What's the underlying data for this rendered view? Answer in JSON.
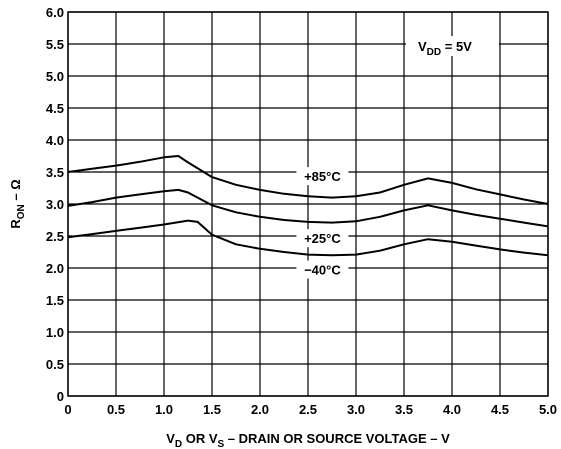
{
  "chart_data": {
    "type": "line",
    "title": "",
    "xlabel": {
      "parts": [
        {
          "t": "V"
        },
        {
          "t": "D",
          "sub": true
        },
        {
          "t": " OR V"
        },
        {
          "t": "S",
          "sub": true
        },
        {
          "t": " – DRAIN OR SOURCE VOLTAGE – V"
        }
      ]
    },
    "ylabel": {
      "parts": [
        {
          "t": "R"
        },
        {
          "t": "ON",
          "sub": true
        },
        {
          "t": " – Ω"
        }
      ]
    },
    "xlim": [
      0,
      5
    ],
    "ylim": [
      0,
      6
    ],
    "x_ticks": [
      "0",
      "0.5",
      "1.0",
      "1.5",
      "2.0",
      "2.5",
      "3.0",
      "3.5",
      "4.0",
      "4.5",
      "5.0"
    ],
    "y_ticks": [
      "0",
      "0.5",
      "1.0",
      "1.5",
      "2.0",
      "2.5",
      "3.0",
      "3.5",
      "4.0",
      "4.5",
      "5.0",
      "5.5",
      "6.0"
    ],
    "grid": true,
    "condition": {
      "parts": [
        {
          "t": "V"
        },
        {
          "t": "DD",
          "sub": true
        },
        {
          "t": " = 5V"
        }
      ]
    },
    "series": [
      {
        "name": "+85°C",
        "x": [
          0,
          0.25,
          0.5,
          0.75,
          1.0,
          1.15,
          1.25,
          1.5,
          1.75,
          2.0,
          2.25,
          2.5,
          2.75,
          3.0,
          3.25,
          3.5,
          3.75,
          4.0,
          4.25,
          4.5,
          4.75,
          5.0
        ],
        "y": [
          3.5,
          3.55,
          3.6,
          3.66,
          3.73,
          3.75,
          3.65,
          3.42,
          3.3,
          3.22,
          3.16,
          3.12,
          3.1,
          3.12,
          3.18,
          3.3,
          3.4,
          3.33,
          3.23,
          3.15,
          3.07,
          3.0
        ]
      },
      {
        "name": "+25°C",
        "x": [
          0,
          0.25,
          0.5,
          0.75,
          1.0,
          1.15,
          1.25,
          1.5,
          1.75,
          2.0,
          2.25,
          2.5,
          2.75,
          3.0,
          3.25,
          3.5,
          3.75,
          4.0,
          4.25,
          4.5,
          4.75,
          5.0
        ],
        "y": [
          2.97,
          3.03,
          3.1,
          3.15,
          3.2,
          3.22,
          3.18,
          2.98,
          2.87,
          2.8,
          2.75,
          2.72,
          2.71,
          2.73,
          2.8,
          2.9,
          2.98,
          2.9,
          2.83,
          2.77,
          2.71,
          2.65
        ]
      },
      {
        "name": "−40°C",
        "x": [
          0,
          0.25,
          0.5,
          0.75,
          1.0,
          1.25,
          1.35,
          1.5,
          1.75,
          2.0,
          2.25,
          2.5,
          2.75,
          3.0,
          3.25,
          3.5,
          3.75,
          4.0,
          4.25,
          4.5,
          4.75,
          5.0
        ],
        "y": [
          2.48,
          2.53,
          2.58,
          2.63,
          2.68,
          2.74,
          2.72,
          2.52,
          2.37,
          2.3,
          2.25,
          2.21,
          2.2,
          2.21,
          2.27,
          2.37,
          2.45,
          2.41,
          2.35,
          2.29,
          2.24,
          2.2
        ]
      }
    ],
    "series_labels": [
      {
        "text": "+85°C",
        "x": 2.65,
        "y": 3.42
      },
      {
        "text": "+25°C",
        "x": 2.65,
        "y": 2.45
      },
      {
        "text": "−40°C",
        "x": 2.65,
        "y": 1.96
      }
    ]
  }
}
